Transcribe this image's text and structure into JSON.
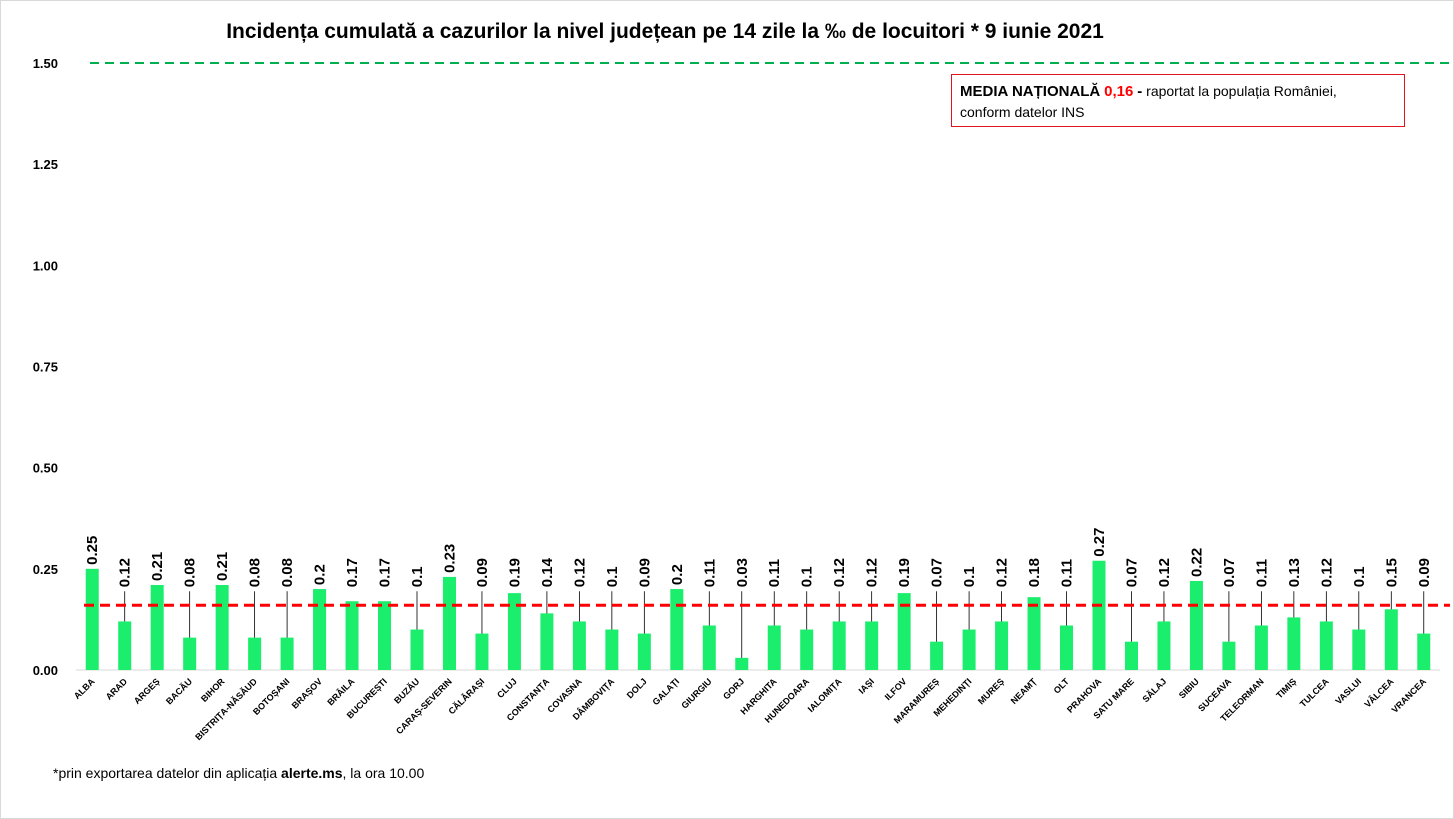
{
  "title": "Incidența cumulată a cazurilor la nivel județean pe 14 zile la ‰ de locuitori *  9 iunie 2021",
  "legend_box": {
    "label": "MEDIA NAȚIONALĂ",
    "value": "0,16",
    "dash": "-",
    "text1": "raportat la populația României,",
    "text2": "conform datelor INS"
  },
  "footnote": {
    "before": "*prin exportarea datelor din aplicația ",
    "bold": "alerte.ms",
    "after": ", la ora 10.00"
  },
  "colors": {
    "bar": "#1aee6c",
    "national_line": "#ff0000",
    "threshold_line": "#00b050",
    "legend_border": "#e0141e"
  },
  "chart_data": {
    "type": "bar",
    "title": "Incidența cumulată a cazurilor la nivel județean pe 14 zile la ‰ de locuitori *  9 iunie 2021",
    "xlabel": "",
    "ylabel": "",
    "ylim": [
      0,
      1.5
    ],
    "yticks": [
      "0.00",
      "0.25",
      "0.50",
      "0.75",
      "1.00",
      "1.25",
      "1.50"
    ],
    "grid": false,
    "reference_lines": [
      {
        "value": 1.5,
        "style": "dashed",
        "color": "#00b050"
      },
      {
        "value": 0.16,
        "style": "dashed",
        "color": "#ff0000"
      }
    ],
    "categories": [
      "ALBA",
      "ARAD",
      "ARGEȘ",
      "BACĂU",
      "BIHOR",
      "BISTRIȚA-NĂSĂUD",
      "BOTOȘANI",
      "BRAȘOV",
      "BRĂILA",
      "BUCUREȘTI",
      "BUZĂU",
      "CARAȘ-SEVERIN",
      "CĂLĂRAȘI",
      "CLUJ",
      "CONSTANȚA",
      "COVASNA",
      "DÂMBOVIȚA",
      "DOLJ",
      "GALAȚI",
      "GIURGIU",
      "GORJ",
      "HARGHITA",
      "HUNEDOARA",
      "IALOMIȚA",
      "IAȘI",
      "ILFOV",
      "MARAMUREȘ",
      "MEHEDINȚI",
      "MUREȘ",
      "NEAMȚ",
      "OLT",
      "PRAHOVA",
      "SATU MARE",
      "SĂLAJ",
      "SIBIU",
      "SUCEAVA",
      "TELEORMAN",
      "TIMIȘ",
      "TULCEA",
      "VASLUI",
      "VÂLCEA",
      "VRANCEA"
    ],
    "values": [
      0.25,
      0.12,
      0.21,
      0.08,
      0.21,
      0.08,
      0.08,
      0.2,
      0.17,
      0.17,
      0.1,
      0.23,
      0.09,
      0.19,
      0.14,
      0.12,
      0.1,
      0.09,
      0.2,
      0.11,
      0.03,
      0.11,
      0.1,
      0.12,
      0.12,
      0.19,
      0.07,
      0.1,
      0.12,
      0.18,
      0.11,
      0.27,
      0.07,
      0.12,
      0.22,
      0.07,
      0.11,
      0.13,
      0.12,
      0.1,
      0.15,
      0.09
    ],
    "data_labels": [
      "0.25",
      "0.12",
      "0.21",
      "0.08",
      "0.21",
      "0.08",
      "0.08",
      "0.2",
      "0.17",
      "0.17",
      "0.1",
      "0.23",
      "0.09",
      "0.19",
      "0.14",
      "0.12",
      "0.1",
      "0.09",
      "0.2",
      "0.11",
      "0.03",
      "0.11",
      "0.1",
      "0.12",
      "0.12",
      "0.19",
      "0.07",
      "0.1",
      "0.12",
      "0.18",
      "0.11",
      "0.27",
      "0.07",
      "0.12",
      "0.22",
      "0.07",
      "0.11",
      "0.13",
      "0.12",
      "0.1",
      "0.15",
      "0.09"
    ]
  }
}
